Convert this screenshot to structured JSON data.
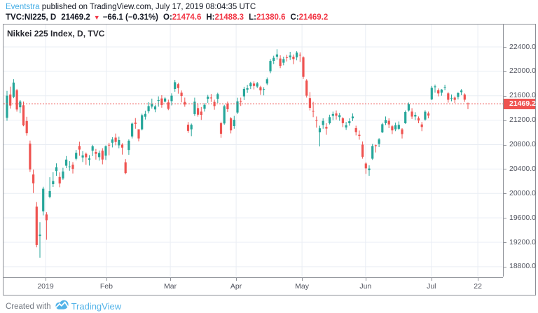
{
  "header": {
    "line1": {
      "user": "Eventstra",
      "rest": " published on TradingView.com, July 17, 2019 08:04:35 UTC"
    },
    "line2": {
      "symbol": "TVC:NI225, D",
      "last": "21469.2",
      "arrow": "▼",
      "change": "−66.1 (−0.31%)",
      "o_label": "O:",
      "o": "21474.6",
      "h_label": "H:",
      "h": "21488.3",
      "l_label": "L:",
      "l": "21380.6",
      "c_label": "C:",
      "c": "21469.2"
    }
  },
  "footer": {
    "created_with": "Created with",
    "brand": "TradingView"
  },
  "colors": {
    "candle_up": "#26a69a",
    "candle_down": "#ef5350",
    "header_down_red": "#f23645",
    "link_blue": "#45aee6",
    "brand_blue": "#53b3e8"
  },
  "chart_data": {
    "type": "candlestick",
    "title": "Nikkei 225 Index, D, TVC",
    "symbol": "TVC:NI225",
    "interval": "D",
    "last_price": 21469.2,
    "last_price_label": "21469.2",
    "ylim": [
      18638,
      22767
    ],
    "y_ticks": [
      22400,
      22000,
      21600,
      21200,
      20800,
      20400,
      20000,
      19600,
      19200,
      18800
    ],
    "x_ticks": [
      {
        "label": "2019",
        "i": 11.7
      },
      {
        "label": "Feb",
        "i": 30.2
      },
      {
        "label": "Mar",
        "i": 49.6
      },
      {
        "label": "Apr",
        "i": 69.6
      },
      {
        "label": "May",
        "i": 89.6
      },
      {
        "label": "Jun",
        "i": 108.9
      },
      {
        "label": "Jul",
        "i": 128.9
      },
      {
        "label": "22",
        "i": 143
      }
    ],
    "grid": true,
    "legend_position": "none",
    "candles_format": "[open, high, low, close]",
    "candles": [
      [
        21240,
        21680,
        21190,
        21602
      ],
      [
        21620,
        21750,
        21390,
        21440
      ],
      [
        21580,
        21871,
        21560,
        21816
      ],
      [
        21689,
        21713,
        21340,
        21375
      ],
      [
        21412,
        21530,
        21317,
        21507
      ],
      [
        21445,
        21505,
        21100,
        21115
      ],
      [
        21186,
        21255,
        20947,
        20987
      ],
      [
        20816,
        20866,
        20352,
        20392
      ],
      [
        20310,
        20390,
        20006,
        20166
      ],
      [
        19785,
        19860,
        19117,
        19155
      ],
      [
        19302,
        19530,
        18948,
        19327
      ],
      [
        19706,
        20110,
        19640,
        20077
      ],
      [
        19655,
        19692,
        19241,
        19561
      ],
      [
        19944,
        20266,
        19920,
        20038
      ],
      [
        20152,
        20347,
        20106,
        20204
      ],
      [
        20366,
        20494,
        20288,
        20427
      ],
      [
        20270,
        20345,
        20101,
        20163
      ],
      [
        20246,
        20420,
        20222,
        20359
      ],
      [
        20455,
        20613,
        20415,
        20555
      ],
      [
        20433,
        20529,
        20372,
        20442
      ],
      [
        20470,
        20513,
        20326,
        20402
      ],
      [
        20568,
        20713,
        20541,
        20666
      ],
      [
        20777,
        20847,
        20617,
        20719
      ],
      [
        20589,
        20692,
        20514,
        20622
      ],
      [
        20650,
        20670,
        20468,
        20593
      ],
      [
        20550,
        20628,
        20456,
        20574
      ],
      [
        20700,
        20796,
        20612,
        20773
      ],
      [
        20680,
        20729,
        20555,
        20649
      ],
      [
        20595,
        20702,
        20537,
        20664
      ],
      [
        20700,
        20740,
        20477,
        20556
      ],
      [
        20618,
        20787,
        20548,
        20773
      ],
      [
        20797,
        20830,
        20624,
        20788
      ],
      [
        20831,
        20922,
        20754,
        20884
      ],
      [
        20915,
        20981,
        20789,
        20844
      ],
      [
        20788,
        20930,
        20739,
        20874
      ],
      [
        20800,
        20823,
        20637,
        20751
      ],
      [
        20510,
        20562,
        20315,
        20333
      ],
      [
        20711,
        20885,
        20632,
        20864
      ],
      [
        20933,
        21162,
        20901,
        21144
      ],
      [
        21160,
        21235,
        21060,
        21139
      ],
      [
        21051,
        21051,
        20853,
        20901
      ],
      [
        21050,
        21306,
        21033,
        21282
      ],
      [
        21256,
        21355,
        21211,
        21302
      ],
      [
        21346,
        21494,
        21311,
        21431
      ],
      [
        21422,
        21553,
        21390,
        21464
      ],
      [
        21376,
        21451,
        21331,
        21426
      ],
      [
        21515,
        21590,
        21420,
        21528
      ],
      [
        21556,
        21610,
        21405,
        21449
      ],
      [
        21504,
        21578,
        21492,
        21556
      ],
      [
        21492,
        21536,
        21364,
        21385
      ],
      [
        21513,
        21640,
        21442,
        21602
      ],
      [
        21712,
        21860,
        21666,
        21822
      ],
      [
        21790,
        21812,
        21635,
        21726
      ],
      [
        21650,
        21687,
        21492,
        21596
      ],
      [
        21499,
        21570,
        21421,
        21456
      ],
      [
        21126,
        21171,
        20993,
        21025
      ],
      [
        21050,
        21145,
        20939,
        21125
      ],
      [
        21300,
        21568,
        21270,
        21503
      ],
      [
        21398,
        21475,
        21258,
        21290
      ],
      [
        21340,
        21416,
        21204,
        21287
      ],
      [
        21386,
        21478,
        21340,
        21451
      ],
      [
        21550,
        21614,
        21483,
        21584
      ],
      [
        21570,
        21629,
        21499,
        21566
      ],
      [
        21500,
        21535,
        21371,
        21431
      ],
      [
        21550,
        21649,
        21480,
        21627
      ],
      [
        21151,
        21176,
        20911,
        20977
      ],
      [
        21146,
        21451,
        21125,
        21428
      ],
      [
        21473,
        21505,
        21334,
        21379
      ],
      [
        21230,
        21251,
        20983,
        21033
      ],
      [
        21104,
        21270,
        21060,
        21206
      ],
      [
        21325,
        21567,
        21300,
        21509
      ],
      [
        21515,
        21570,
        21433,
        21505
      ],
      [
        21590,
        21747,
        21530,
        21713
      ],
      [
        21700,
        21779,
        21646,
        21724
      ],
      [
        21755,
        21829,
        21710,
        21808
      ],
      [
        21800,
        21835,
        21704,
        21761
      ],
      [
        21750,
        21827,
        21724,
        21802
      ],
      [
        21740,
        21762,
        21614,
        21687
      ],
      [
        21700,
        21741,
        21606,
        21711
      ],
      [
        21800,
        21900,
        21775,
        21870
      ],
      [
        22000,
        22200,
        21970,
        22169
      ],
      [
        22170,
        22255,
        22120,
        22221
      ],
      [
        22240,
        22362,
        22190,
        22277
      ],
      [
        22210,
        22262,
        22052,
        22090
      ],
      [
        22140,
        22240,
        22098,
        22200
      ],
      [
        22230,
        22270,
        22161,
        22217
      ],
      [
        22230,
        22320,
        22185,
        22259
      ],
      [
        22240,
        22276,
        22118,
        22200
      ],
      [
        22230,
        22330,
        22180,
        22307
      ],
      [
        22270,
        22312,
        22153,
        22258
      ],
      [
        22230,
        22245,
        21875,
        21910
      ],
      [
        21850,
        21870,
        21570,
        21602
      ],
      [
        21560,
        21660,
        21360,
        21402
      ],
      [
        21350,
        21500,
        21250,
        21345
      ],
      [
        21200,
        21260,
        21078,
        21191
      ],
      [
        21000,
        21110,
        20770,
        21067
      ],
      [
        21120,
        21230,
        21060,
        21188
      ],
      [
        21090,
        21150,
        20960,
        21062
      ],
      [
        21150,
        21290,
        21130,
        21250
      ],
      [
        21270,
        21340,
        21200,
        21301
      ],
      [
        21310,
        21360,
        21210,
        21272
      ],
      [
        21250,
        21320,
        21190,
        21283
      ],
      [
        21230,
        21250,
        21087,
        21151
      ],
      [
        21080,
        21170,
        21040,
        21117
      ],
      [
        21150,
        21230,
        21110,
        21183
      ],
      [
        21230,
        21310,
        21185,
        21260
      ],
      [
        21070,
        21110,
        20950,
        21003
      ],
      [
        20960,
        21030,
        20880,
        20942
      ],
      [
        20800,
        20850,
        20570,
        20601
      ],
      [
        20490,
        20510,
        20320,
        20411
      ],
      [
        20380,
        20460,
        20289,
        20409
      ],
      [
        20570,
        20810,
        20550,
        20776
      ],
      [
        20790,
        20800,
        20672,
        20774
      ],
      [
        20810,
        20907,
        20760,
        20885
      ],
      [
        21000,
        21155,
        20990,
        21134
      ],
      [
        21150,
        21260,
        21120,
        21204
      ],
      [
        21190,
        21230,
        21070,
        21130
      ],
      [
        21100,
        21120,
        20972,
        21032
      ],
      [
        21050,
        21160,
        21020,
        21117
      ],
      [
        21060,
        21180,
        21040,
        21124
      ],
      [
        21050,
        21070,
        20900,
        20972
      ],
      [
        21150,
        21360,
        21140,
        21333
      ],
      [
        21360,
        21489,
        21340,
        21462
      ],
      [
        21340,
        21396,
        21221,
        21259
      ],
      [
        21260,
        21330,
        21200,
        21286
      ],
      [
        21230,
        21260,
        21150,
        21193
      ],
      [
        21130,
        21170,
        21020,
        21087
      ],
      [
        21210,
        21363,
        21190,
        21338
      ],
      [
        21310,
        21340,
        21230,
        21276
      ],
      [
        21540,
        21760,
        21530,
        21730
      ],
      [
        21740,
        21784,
        21650,
        21754
      ],
      [
        21690,
        21720,
        21590,
        21638
      ],
      [
        21650,
        21710,
        21600,
        21702
      ],
      [
        21740,
        21781,
        21690,
        21746
      ],
      [
        21640,
        21660,
        21487,
        21534
      ],
      [
        21560,
        21620,
        21510,
        21565
      ],
      [
        21570,
        21590,
        21480,
        21533
      ],
      [
        21580,
        21660,
        21540,
        21643
      ],
      [
        21660,
        21710,
        21610,
        21686
      ],
      [
        21620,
        21640,
        21500,
        21535
      ],
      [
        21474.6,
        21488.3,
        21380.6,
        21469.2
      ]
    ]
  }
}
